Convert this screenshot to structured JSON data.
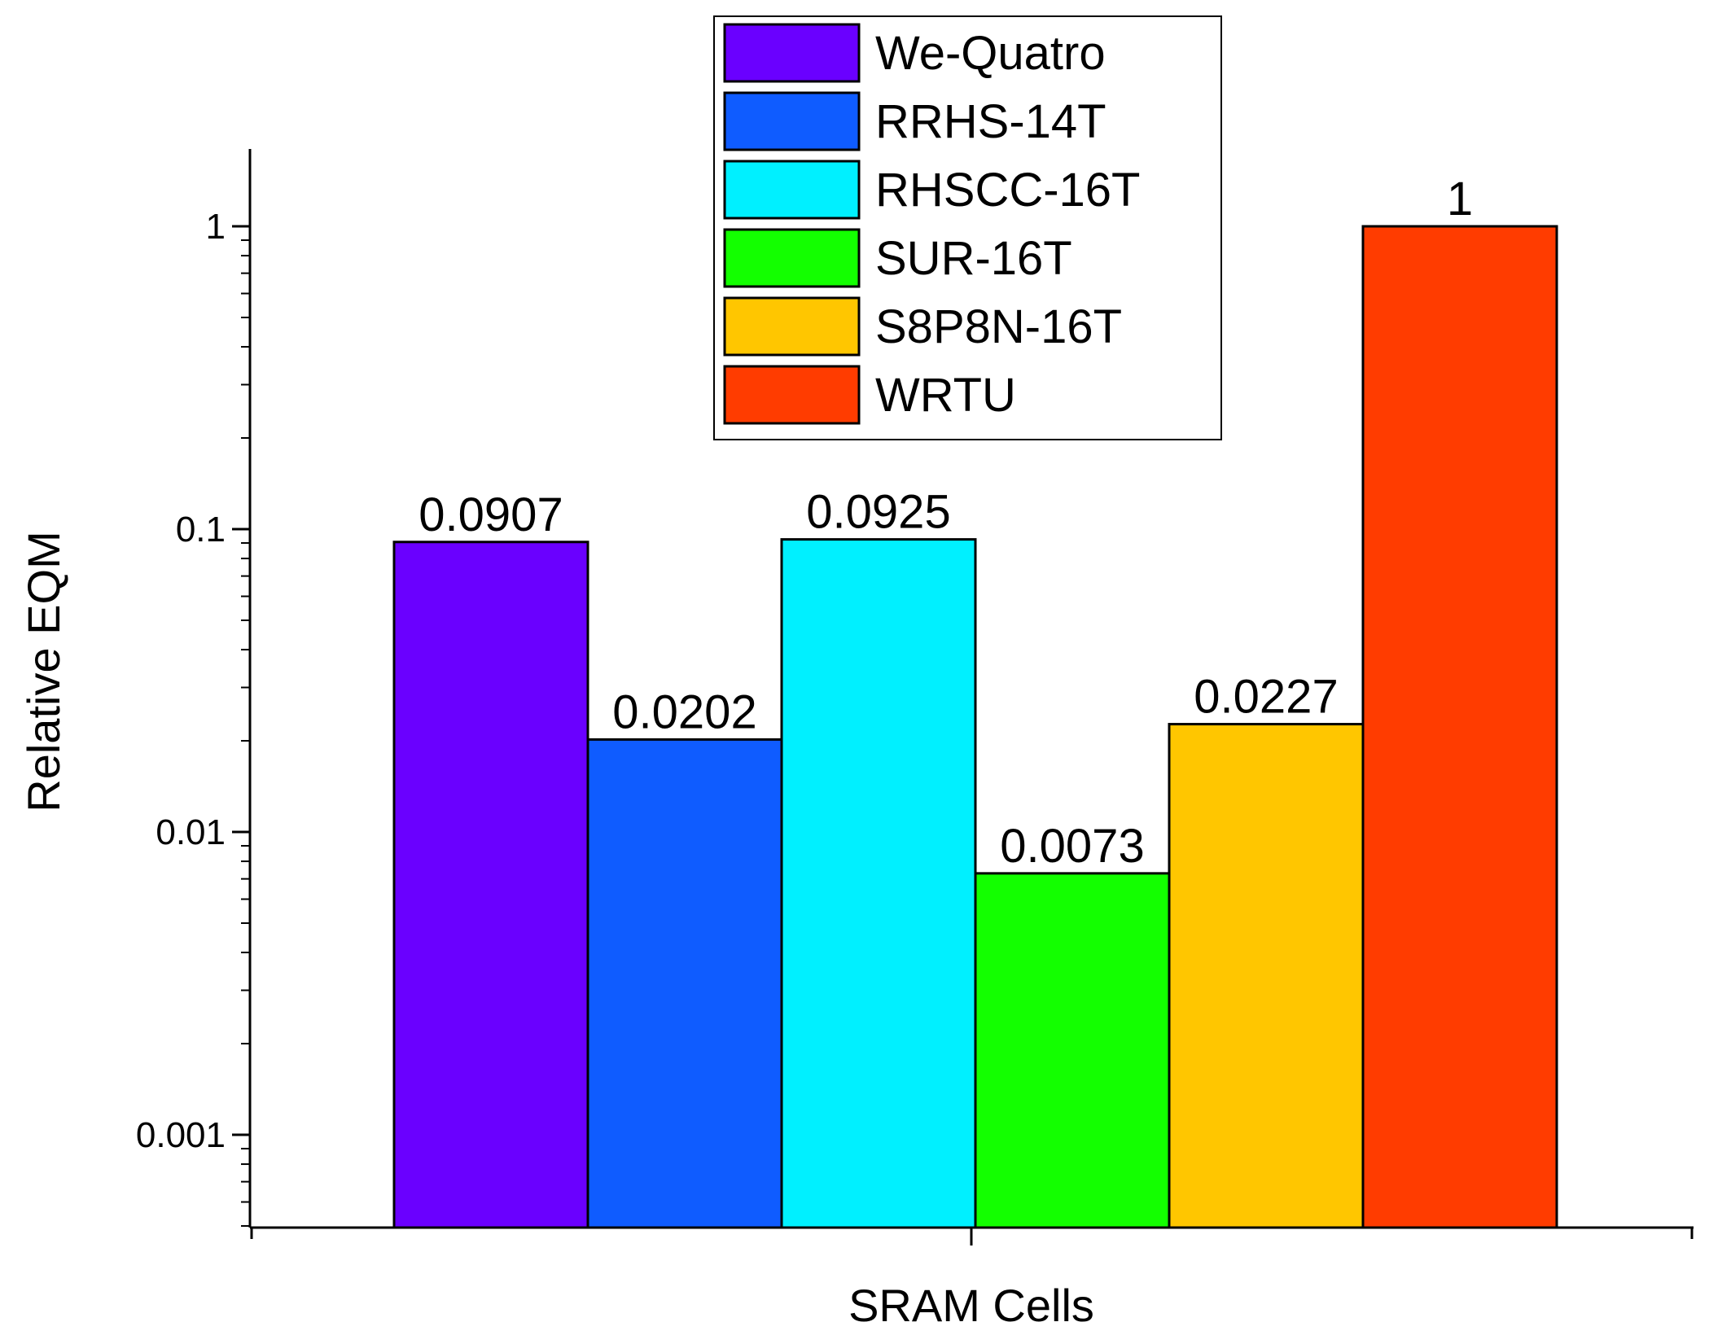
{
  "chart_data": {
    "type": "bar",
    "yscale": "log",
    "xlabel": "SRAM Cells",
    "ylabel": "Relative EQM",
    "ylim": [
      0.0005,
      1.8
    ],
    "yticks": [
      {
        "value": 0.001,
        "label": "0.001"
      },
      {
        "value": 0.01,
        "label": "0.01"
      },
      {
        "value": 0.1,
        "label": "0.1"
      },
      {
        "value": 1,
        "label": "1"
      }
    ],
    "legend_position": "top-center",
    "categories": [
      "We-Quatro",
      "RRHS-14T",
      "RHSCC-16T",
      "SUR-16T",
      "S8P8N-16T",
      "WRTU"
    ],
    "values": [
      0.0907,
      0.0202,
      0.0925,
      0.0073,
      0.0227,
      1
    ],
    "value_labels": [
      "0.0907",
      "0.0202",
      "0.0925",
      "0.0073",
      "0.0227",
      "1"
    ],
    "colors": [
      "#6a00ff",
      "#0f5cff",
      "#00f0ff",
      "#13ff00",
      "#ffc600",
      "#ff3c00"
    ]
  }
}
